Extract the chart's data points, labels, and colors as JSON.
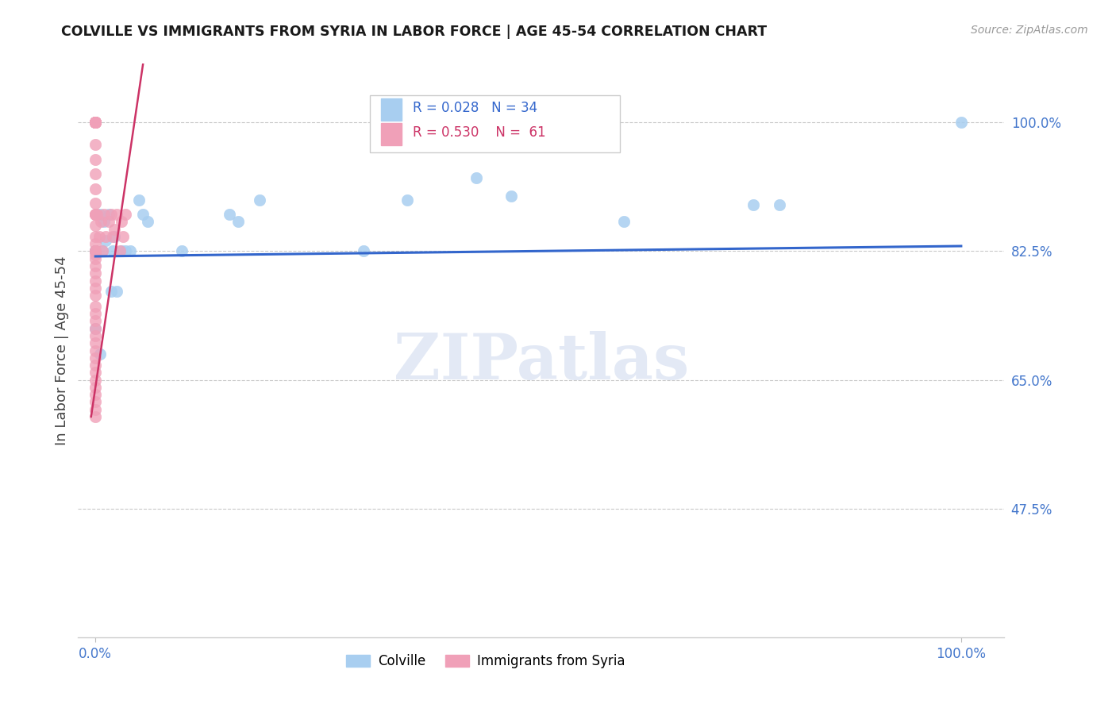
{
  "title": "COLVILLE VS IMMIGRANTS FROM SYRIA IN LABOR FORCE | AGE 45-54 CORRELATION CHART",
  "source": "Source: ZipAtlas.com",
  "ylabel": "In Labor Force | Age 45-54",
  "colville_R": "0.028",
  "colville_N": "34",
  "syria_R": "0.530",
  "syria_N": "61",
  "colville_color": "#a8cef0",
  "colville_edge": "#7aaee0",
  "syria_color": "#f0a0b8",
  "syria_edge": "#e07090",
  "colville_line_color": "#3366cc",
  "syria_line_color": "#cc3366",
  "label_color": "#4477cc",
  "watermark": "ZIPatlas",
  "xmin": 0.0,
  "xmax": 1.0,
  "ymin": 0.3,
  "ymax": 1.08,
  "yticks": [
    0.475,
    0.65,
    0.825,
    1.0
  ],
  "ytick_labels": [
    "47.5%",
    "65.0%",
    "82.5%",
    "100.0%"
  ],
  "xticks": [
    0.0,
    1.0
  ],
  "xtick_labels": [
    "0.0%",
    "100.0%"
  ],
  "colville_trend_x": [
    0.0,
    1.0
  ],
  "colville_trend_y": [
    0.818,
    0.832
  ],
  "syria_trend_x": [
    -0.005,
    0.055
  ],
  "syria_trend_y": [
    0.6,
    1.08
  ],
  "colville_points_x": [
    0.0,
    0.0,
    0.0,
    0.0,
    0.0,
    0.005,
    0.008,
    0.01,
    0.012,
    0.015,
    0.018,
    0.02,
    0.022,
    0.025,
    0.03,
    0.035,
    0.04,
    0.05,
    0.055,
    0.06,
    0.0,
    0.005,
    0.1,
    0.155,
    0.165,
    0.19,
    0.31,
    0.36,
    0.44,
    0.48,
    0.61,
    0.76,
    0.79,
    1.0
  ],
  "colville_points_y": [
    0.825,
    0.825,
    0.825,
    0.825,
    0.825,
    0.875,
    0.825,
    0.865,
    0.84,
    0.875,
    0.77,
    0.825,
    0.845,
    0.77,
    0.825,
    0.825,
    0.825,
    0.895,
    0.875,
    0.865,
    0.72,
    0.685,
    0.825,
    0.875,
    0.865,
    0.895,
    0.825,
    0.895,
    0.925,
    0.9,
    0.865,
    0.888,
    0.888,
    1.0
  ],
  "syria_points_x": [
    0.0,
    0.0,
    0.0,
    0.0,
    0.0,
    0.0,
    0.0,
    0.0,
    0.0,
    0.0,
    0.0,
    0.0,
    0.0,
    0.0,
    0.0,
    0.0,
    0.0,
    0.0,
    0.0,
    0.0,
    0.0,
    0.0,
    0.0,
    0.0,
    0.0,
    0.0,
    0.0,
    0.0,
    0.0,
    0.0,
    0.002,
    0.004,
    0.006,
    0.008,
    0.01,
    0.012,
    0.015,
    0.018,
    0.02,
    0.022,
    0.025,
    0.028,
    0.03,
    0.032,
    0.035,
    0.0,
    0.0,
    0.0,
    0.0,
    0.0,
    0.0,
    0.0,
    0.0,
    0.0,
    0.0,
    0.0,
    0.0,
    0.0,
    0.0,
    0.0,
    0.0
  ],
  "syria_points_y": [
    1.0,
    1.0,
    1.0,
    1.0,
    1.0,
    1.0,
    1.0,
    1.0,
    1.0,
    1.0,
    0.97,
    0.95,
    0.93,
    0.91,
    0.89,
    0.875,
    0.875,
    0.875,
    0.86,
    0.845,
    0.835,
    0.825,
    0.825,
    0.82,
    0.815,
    0.805,
    0.795,
    0.785,
    0.775,
    0.765,
    0.875,
    0.845,
    0.865,
    0.825,
    0.875,
    0.845,
    0.865,
    0.875,
    0.845,
    0.855,
    0.875,
    0.825,
    0.865,
    0.845,
    0.875,
    0.75,
    0.74,
    0.73,
    0.72,
    0.71,
    0.7,
    0.69,
    0.68,
    0.67,
    0.66,
    0.65,
    0.64,
    0.63,
    0.62,
    0.61,
    0.6
  ]
}
